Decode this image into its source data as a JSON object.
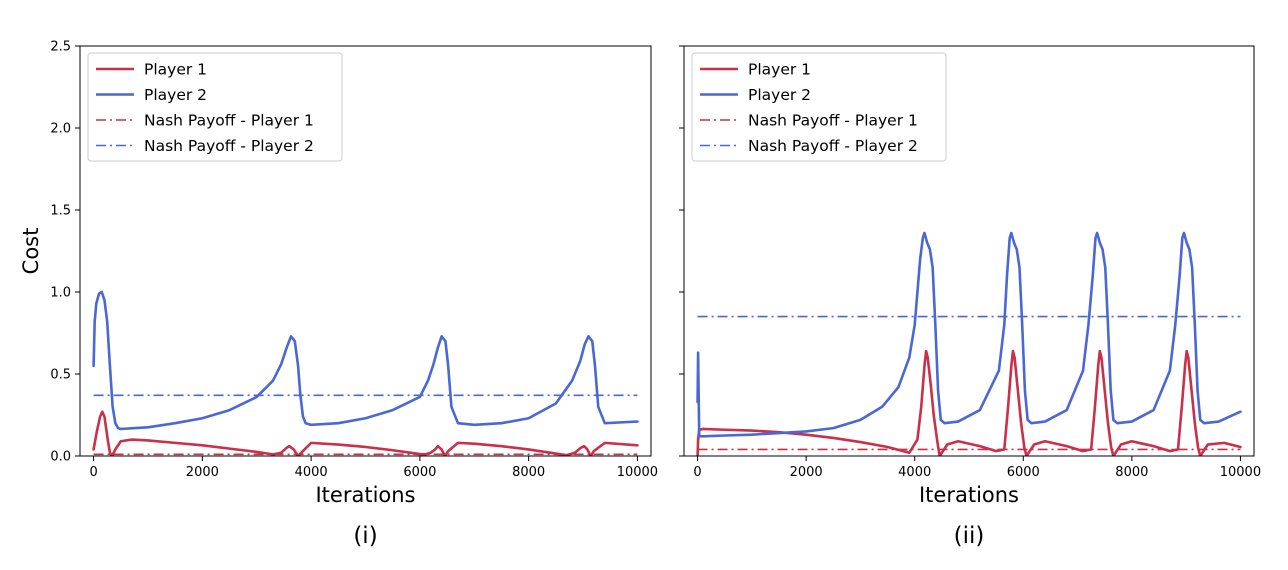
{
  "colors": {
    "player1": "#c9304a",
    "player2": "#4a67d6"
  },
  "chart_data": [
    {
      "type": "line",
      "caption": "(i)",
      "xlabel": "Iterations",
      "ylabel": "Cost",
      "xlim": [
        -250,
        10250
      ],
      "ylim": [
        0,
        2.5
      ],
      "xticks": [
        0,
        2000,
        4000,
        6000,
        8000,
        10000
      ],
      "yticks": [
        0.0,
        0.5,
        1.0,
        1.5,
        2.0,
        2.5
      ],
      "xtick_labels": [
        "0",
        "2000",
        "4000",
        "6000",
        "8000",
        "10000"
      ],
      "ytick_labels": [
        "0.0",
        "0.5",
        "1.0",
        "1.5",
        "2.0",
        "2.5"
      ],
      "legend_position": "top-left",
      "legend": [
        "Player 1",
        "Player 2",
        "Nash Payoff - Player 1",
        "Nash Payoff - Player 2"
      ],
      "series": [
        {
          "name": "Player 1",
          "style": "solid",
          "x": [
            0,
            60,
            120,
            160,
            200,
            260,
            300,
            340,
            400,
            500,
            700,
            1000,
            1500,
            2000,
            2500,
            3000,
            3300,
            3450,
            3550,
            3600,
            3680,
            3760,
            3820,
            4000,
            4500,
            5000,
            5500,
            6000,
            6100,
            6200,
            6280,
            6330,
            6400,
            6460,
            6520,
            6700,
            7000,
            7500,
            8000,
            8500,
            8700,
            8850,
            8960,
            9020,
            9080,
            9140,
            9200,
            9400,
            10000
          ],
          "y": [
            0.04,
            0.15,
            0.24,
            0.27,
            0.24,
            0.1,
            0.02,
            0.0,
            0.04,
            0.09,
            0.1,
            0.095,
            0.08,
            0.065,
            0.045,
            0.025,
            0.01,
            0.02,
            0.05,
            0.06,
            0.04,
            0.0,
            0.02,
            0.08,
            0.07,
            0.055,
            0.035,
            0.012,
            0.01,
            0.02,
            0.04,
            0.06,
            0.04,
            0.0,
            0.03,
            0.08,
            0.075,
            0.06,
            0.04,
            0.015,
            0.005,
            0.02,
            0.05,
            0.06,
            0.04,
            0.0,
            0.03,
            0.08,
            0.065
          ]
        },
        {
          "name": "Player 2",
          "style": "solid",
          "x": [
            0,
            20,
            50,
            100,
            150,
            200,
            250,
            300,
            350,
            400,
            450,
            500,
            1000,
            1500,
            2000,
            2500,
            3000,
            3300,
            3450,
            3550,
            3630,
            3700,
            3760,
            3800,
            3850,
            3900,
            4000,
            4500,
            5000,
            5500,
            6000,
            6150,
            6250,
            6330,
            6400,
            6470,
            6520,
            6580,
            6700,
            7000,
            7500,
            8000,
            8500,
            8800,
            8950,
            9030,
            9100,
            9170,
            9220,
            9280,
            9400,
            10000
          ],
          "y": [
            0.55,
            0.82,
            0.93,
            0.99,
            1.0,
            0.95,
            0.82,
            0.55,
            0.3,
            0.2,
            0.17,
            0.165,
            0.175,
            0.2,
            0.23,
            0.28,
            0.36,
            0.46,
            0.56,
            0.66,
            0.73,
            0.7,
            0.55,
            0.38,
            0.24,
            0.2,
            0.19,
            0.2,
            0.23,
            0.28,
            0.36,
            0.46,
            0.56,
            0.66,
            0.73,
            0.7,
            0.55,
            0.3,
            0.2,
            0.19,
            0.2,
            0.23,
            0.32,
            0.46,
            0.58,
            0.68,
            0.73,
            0.7,
            0.55,
            0.3,
            0.2,
            0.21
          ]
        },
        {
          "name": "Nash Payoff - Player 1",
          "style": "dashdot",
          "x": [
            0,
            10000
          ],
          "y": [
            0.01,
            0.01
          ]
        },
        {
          "name": "Nash Payoff - Player 2",
          "style": "dashdot",
          "x": [
            0,
            10000
          ],
          "y": [
            0.37,
            0.37
          ]
        }
      ]
    },
    {
      "type": "line",
      "caption": "(ii)",
      "xlabel": "Iterations",
      "ylabel": "",
      "xlim": [
        -250,
        10250
      ],
      "ylim": [
        0,
        2.5
      ],
      "xticks": [
        0,
        2000,
        4000,
        6000,
        8000,
        10000
      ],
      "yticks": [
        0.0,
        0.5,
        1.0,
        1.5,
        2.0,
        2.5
      ],
      "xtick_labels": [
        "0",
        "2000",
        "4000",
        "6000",
        "8000",
        "10000"
      ],
      "ytick_labels": [],
      "legend_position": "top-left",
      "legend": [
        "Player 1",
        "Player 2",
        "Nash Payoff - Player 1",
        "Nash Payoff - Player 2"
      ],
      "series": [
        {
          "name": "Player 1",
          "style": "solid",
          "x": [
            0,
            10,
            30,
            100,
            500,
            1000,
            1500,
            2000,
            2500,
            3000,
            3500,
            3900,
            4050,
            4120,
            4180,
            4210,
            4240,
            4300,
            4350,
            4420,
            4460,
            4600,
            4800,
            5200,
            5500,
            5650,
            5720,
            5780,
            5810,
            5840,
            5900,
            5960,
            6020,
            6060,
            6200,
            6400,
            6800,
            7100,
            7250,
            7320,
            7380,
            7410,
            7440,
            7500,
            7560,
            7620,
            7660,
            7800,
            8000,
            8400,
            8700,
            8850,
            8920,
            8980,
            9010,
            9040,
            9100,
            9160,
            9220,
            9260,
            9400,
            9700,
            10000
          ],
          "y": [
            0.0,
            0.1,
            0.16,
            0.165,
            0.16,
            0.155,
            0.145,
            0.13,
            0.11,
            0.085,
            0.055,
            0.02,
            0.1,
            0.3,
            0.55,
            0.64,
            0.6,
            0.42,
            0.25,
            0.08,
            0.0,
            0.07,
            0.09,
            0.06,
            0.03,
            0.04,
            0.3,
            0.55,
            0.64,
            0.6,
            0.4,
            0.2,
            0.05,
            0.0,
            0.07,
            0.09,
            0.06,
            0.03,
            0.04,
            0.3,
            0.55,
            0.64,
            0.6,
            0.4,
            0.2,
            0.05,
            0.0,
            0.07,
            0.09,
            0.06,
            0.03,
            0.04,
            0.3,
            0.55,
            0.64,
            0.6,
            0.4,
            0.2,
            0.05,
            0.0,
            0.07,
            0.08,
            0.055
          ]
        },
        {
          "name": "Player 2",
          "style": "solid",
          "x": [
            0,
            10,
            30,
            100,
            500,
            1000,
            1500,
            2000,
            2500,
            3000,
            3400,
            3700,
            3900,
            4000,
            4050,
            4100,
            4150,
            4180,
            4230,
            4280,
            4330,
            4380,
            4430,
            4480,
            4550,
            4800,
            5200,
            5550,
            5650,
            5700,
            5750,
            5780,
            5830,
            5880,
            5930,
            5980,
            6030,
            6080,
            6150,
            6400,
            6800,
            7100,
            7200,
            7280,
            7330,
            7360,
            7410,
            7460,
            7510,
            7560,
            7610,
            7660,
            7730,
            8000,
            8400,
            8700,
            8800,
            8880,
            8930,
            8960,
            9010,
            9060,
            9110,
            9160,
            9210,
            9260,
            9330,
            9600,
            10000
          ],
          "y": [
            0.33,
            0.63,
            0.12,
            0.12,
            0.125,
            0.13,
            0.14,
            0.15,
            0.17,
            0.22,
            0.3,
            0.42,
            0.6,
            0.8,
            1.0,
            1.2,
            1.33,
            1.36,
            1.3,
            1.26,
            1.15,
            0.8,
            0.4,
            0.22,
            0.2,
            0.21,
            0.28,
            0.52,
            0.8,
            1.1,
            1.33,
            1.36,
            1.3,
            1.26,
            1.15,
            0.8,
            0.4,
            0.22,
            0.2,
            0.21,
            0.28,
            0.52,
            0.8,
            1.1,
            1.33,
            1.36,
            1.3,
            1.26,
            1.15,
            0.8,
            0.4,
            0.22,
            0.2,
            0.21,
            0.28,
            0.52,
            0.8,
            1.1,
            1.33,
            1.36,
            1.3,
            1.26,
            1.15,
            0.8,
            0.4,
            0.22,
            0.2,
            0.21,
            0.27
          ]
        },
        {
          "name": "Nash Payoff - Player 1",
          "style": "dashdot",
          "x": [
            0,
            10000
          ],
          "y": [
            0.04,
            0.04
          ]
        },
        {
          "name": "Nash Payoff - Player 2",
          "style": "dashdot",
          "x": [
            0,
            10000
          ],
          "y": [
            0.85,
            0.85
          ]
        }
      ]
    }
  ]
}
